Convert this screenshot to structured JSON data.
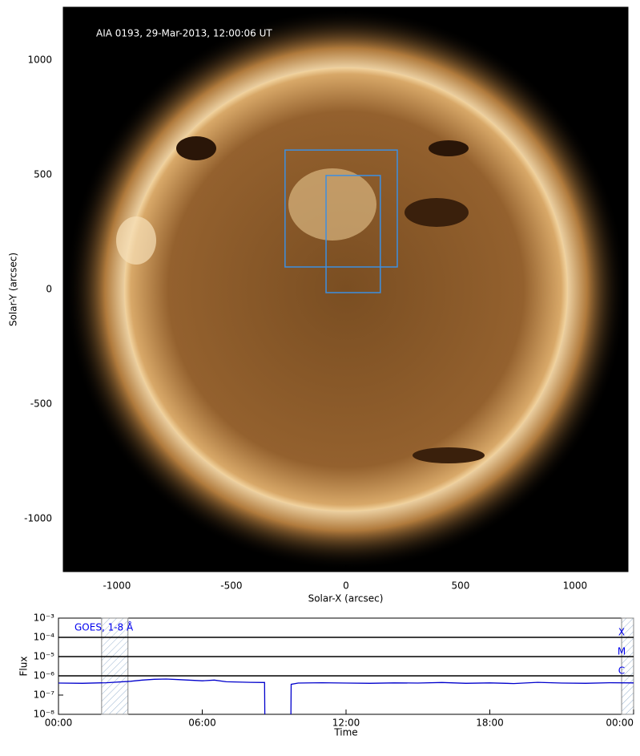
{
  "chart_data": [
    {
      "type": "image",
      "title": "AIA 0193, 29-Mar-2013, 12:00:06 UT",
      "xlabel": "Solar-X (arcsec)",
      "ylabel": "Solar-Y (arcsec)",
      "xlim": [
        -1234,
        1231
      ],
      "ylim": [
        -1231,
        1231
      ],
      "xticks": [
        -1000,
        -500,
        0,
        500,
        1000
      ],
      "yticks": [
        -1000,
        -500,
        0,
        500,
        1000
      ],
      "box_color": "#3d8fe0",
      "regions": [
        {
          "x": [
            -266,
            224
          ],
          "y": [
            98,
            608
          ]
        },
        {
          "x": [
            -87,
            150
          ],
          "y": [
            -14,
            497
          ]
        }
      ]
    },
    {
      "type": "line",
      "title": "GOES, 1-8 Å",
      "xlabel": "Time",
      "ylabel": "Flux",
      "ylog": true,
      "color": "#0000cc",
      "xlim": [
        0,
        24
      ],
      "ylim": [
        1e-08,
        0.001
      ],
      "xticks": [
        {
          "value": 0,
          "label": "00:00"
        },
        {
          "value": 6,
          "label": "06:00"
        },
        {
          "value": 12,
          "label": "12:00"
        },
        {
          "value": 18,
          "label": "18:00"
        },
        {
          "value": 24,
          "label": "00:00"
        }
      ],
      "yticks": [
        {
          "value": 1e-08,
          "label": "10⁻⁸"
        },
        {
          "value": 1e-07,
          "label": "10⁻⁷"
        },
        {
          "value": 1e-06,
          "label": "10⁻⁶"
        },
        {
          "value": 1e-05,
          "label": "10⁻⁵"
        },
        {
          "value": 0.0001,
          "label": "10⁻⁴"
        },
        {
          "value": 0.001,
          "label": "10⁻³"
        }
      ],
      "classes": [
        {
          "label": "X",
          "value": 0.0001
        },
        {
          "label": "M",
          "value": 1e-05
        },
        {
          "label": "C",
          "value": 1e-06
        }
      ],
      "shaded": [
        [
          1.8,
          2.9
        ],
        [
          23.5,
          24
        ]
      ],
      "x": [
        0,
        1,
        2,
        3,
        3.5,
        4,
        4.5,
        5,
        6,
        6.5,
        7,
        8,
        8.6,
        8.61,
        9,
        9.7,
        9.71,
        10,
        11,
        12,
        13,
        14,
        15,
        16,
        17,
        18,
        19,
        20,
        21,
        22,
        23,
        24
      ],
      "values": [
        4.2e-07,
        4.1e-07,
        4.4e-07,
        5.2e-07,
        6e-07,
        6.6e-07,
        6.8e-07,
        6.4e-07,
        5.5e-07,
        6e-07,
        4.9e-07,
        4.6e-07,
        4.5e-07,
        1e-08,
        null,
        1e-08,
        3.6e-07,
        4.2e-07,
        4.4e-07,
        4.2e-07,
        4.1e-07,
        4.3e-07,
        4.2e-07,
        4.5e-07,
        4.1e-07,
        4.3e-07,
        4e-07,
        4.6e-07,
        4.2e-07,
        4.1e-07,
        4.4e-07,
        4.3e-07
      ]
    }
  ]
}
